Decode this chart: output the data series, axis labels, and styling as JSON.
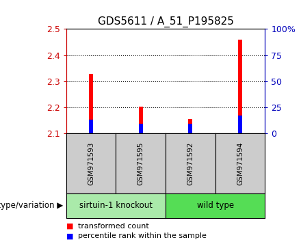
{
  "title": "GDS5611 / A_51_P195825",
  "samples": [
    "GSM971593",
    "GSM971595",
    "GSM971592",
    "GSM971594"
  ],
  "groups": [
    "sirtuin-1 knockout",
    "sirtuin-1 knockout",
    "wild type",
    "wild type"
  ],
  "group_colors": {
    "sirtuin-1 knockout": "#aaeaaa",
    "wild type": "#55dd55"
  },
  "red_values": [
    2.327,
    2.202,
    2.155,
    2.458
  ],
  "blue_values": [
    2.152,
    2.137,
    2.137,
    2.168
  ],
  "ylim": [
    2.1,
    2.5
  ],
  "yticks": [
    2.1,
    2.2,
    2.3,
    2.4,
    2.5
  ],
  "y2ticks": [
    0,
    25,
    50,
    75,
    100
  ],
  "y2labels": [
    "0",
    "25",
    "50",
    "75",
    "100%"
  ],
  "left_color": "#CC0000",
  "right_color": "#0000BB",
  "bar_width": 0.08,
  "legend_red": "transformed count",
  "legend_blue": "percentile rank within the sample",
  "xlabel_label": "genotype/variation",
  "group_bg_color": "#CCCCCC",
  "plot_bg": "#FFFFFF"
}
